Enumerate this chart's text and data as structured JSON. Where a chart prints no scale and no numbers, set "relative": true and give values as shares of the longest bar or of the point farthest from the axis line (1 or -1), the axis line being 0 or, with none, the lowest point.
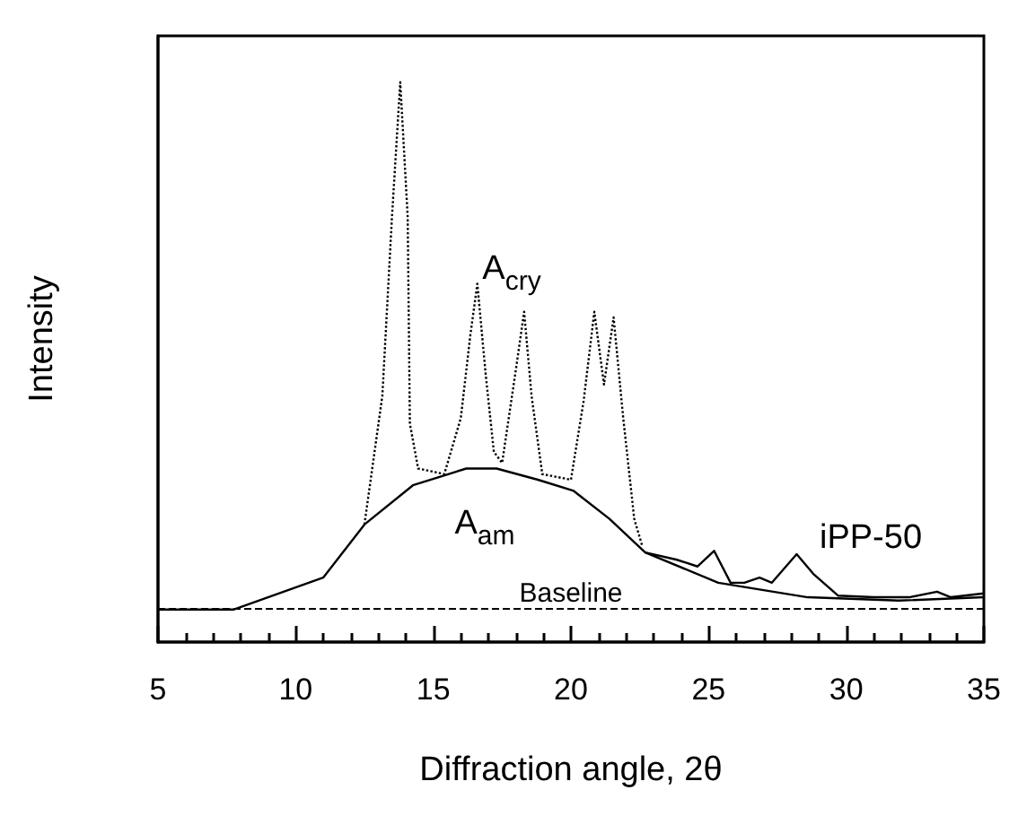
{
  "chart_data": {
    "type": "line",
    "relative": true,
    "xlabel": "Diffraction angle, 2θ",
    "ylabel": "Intensity",
    "xlim": [
      5,
      35
    ],
    "xticks": [
      5,
      10,
      15,
      20,
      25,
      30,
      35
    ],
    "tick_labels": "x",
    "marker": "none",
    "grid": false,
    "series": [
      {
        "color": "#000000",
        "line_style": "dotted",
        "x": [
          12.5,
          13.15,
          13.5,
          13.8,
          14.07,
          14.15,
          14.45,
          15.4,
          16.0,
          16.35,
          16.6,
          16.9,
          17.2,
          17.5,
          17.98,
          18.3,
          18.57,
          18.96,
          20.0,
          20.46,
          20.85,
          21.2,
          21.55,
          21.9,
          22.3,
          22.6
        ],
        "values": [
          0.21,
          0.44,
          0.76,
          1,
          0.76,
          0.39,
          0.31,
          0.3,
          0.4,
          0.55,
          0.64,
          0.48,
          0.34,
          0.32,
          0.48,
          0.59,
          0.44,
          0.3,
          0.29,
          0.43,
          0.59,
          0.46,
          0.58,
          0.4,
          0.22,
          0.17
        ]
      },
      {
        "color": "#000000",
        "line_style": "solid",
        "x": [
          5,
          7.74,
          11.0,
          12.5,
          14.26,
          16.2,
          17.3,
          18.8,
          20.1,
          21.4,
          22.7,
          25.35,
          28.6,
          31.9,
          35
        ],
        "values": [
          0.058,
          0.058,
          0.115,
          0.21,
          0.28,
          0.31,
          0.31,
          0.29,
          0.27,
          0.22,
          0.16,
          0.106,
          0.08,
          0.074,
          0.08
        ]
      },
      {
        "color": "#000000",
        "line_style": "solid",
        "x": [
          22.7,
          23.85,
          24.6,
          25.2,
          25.8,
          26.3,
          26.85,
          27.3,
          28.2,
          28.8,
          29.7,
          31.0,
          32.3,
          33.3,
          33.8,
          35
        ],
        "values": [
          0.16,
          0.147,
          0.135,
          0.163,
          0.106,
          0.106,
          0.115,
          0.106,
          0.157,
          0.122,
          0.083,
          0.08,
          0.08,
          0.09,
          0.08,
          0.087
        ]
      }
    ],
    "ref_lines": [
      {
        "axis": "y",
        "value": 0.058,
        "label": "Baseline",
        "line_style": "dashed",
        "color": "#000000"
      }
    ],
    "annotations": [
      "A$_{cry}$",
      "A$_{am}$",
      "iPP-50"
    ]
  }
}
